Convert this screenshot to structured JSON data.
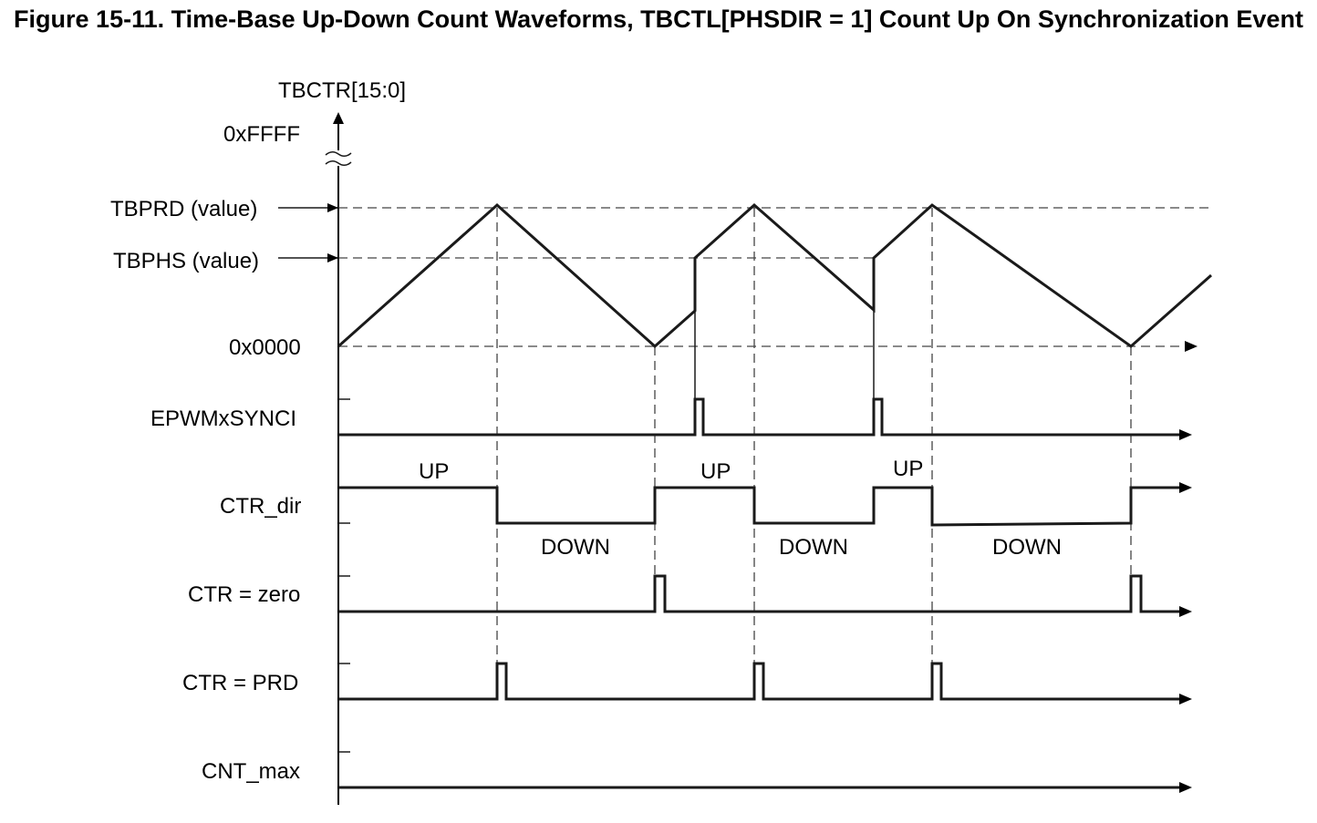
{
  "figure": {
    "title": "Figure 15-11. Time-Base Up-Down Count Waveforms, TBCTL[PHSDIR = 1] Count Up On Synchronization Event"
  },
  "axis": {
    "y_label": "TBCTR[15:0]",
    "levels": {
      "max": "0xFFFF",
      "period": "TBPRD (value)",
      "phase": "TBPHS (value)",
      "zero": "0x0000"
    }
  },
  "signals": {
    "sync": "EPWMxSYNCI",
    "dir": "CTR_dir",
    "zero": "CTR = zero",
    "prd": "CTR = PRD",
    "max": "CNT_max"
  },
  "direction_labels": {
    "up_1": "UP",
    "up_2": "UP",
    "up_3": "UP",
    "down_1": "DOWN",
    "down_2": "DOWN",
    "down_3": "DOWN"
  },
  "colors": {
    "line": "#1a1a1a",
    "guide": "#444444"
  }
}
